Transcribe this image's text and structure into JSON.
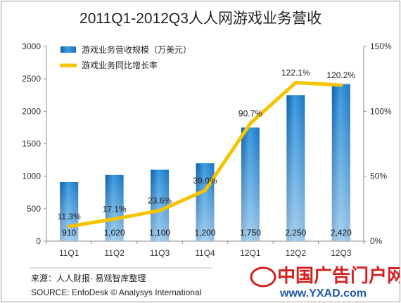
{
  "chart_data": {
    "type": "bar",
    "title": "2011Q1-2012Q3人人网游戏业务营收",
    "categories": [
      "11Q1",
      "11Q2",
      "11Q3",
      "11Q4",
      "12Q1",
      "12Q2",
      "12Q3"
    ],
    "series": [
      {
        "name": "游戏业务营收规模（万美元）",
        "type": "bar",
        "axis": "left",
        "values": [
          910,
          1020,
          1100,
          1200,
          1750,
          2250,
          2420
        ],
        "labels": [
          "910",
          "1,020",
          "1,100",
          "1,200",
          "1,750",
          "2,250",
          "2,420"
        ],
        "color": "#1f7ec8"
      },
      {
        "name": "游戏业务同比增长率",
        "type": "line",
        "axis": "right",
        "values": [
          11.3,
          17.1,
          23.6,
          39.0,
          90.7,
          122.1,
          120.2
        ],
        "labels": [
          "11.3%",
          "17.1%",
          "23.6%",
          "39.0%",
          "90.7%",
          "122.1%",
          "120.2%"
        ],
        "color": "#f5c400"
      }
    ],
    "y_left": {
      "min": 0,
      "max": 3000,
      "ticks": [
        "0",
        "500",
        "1000",
        "1500",
        "2000",
        "2500",
        "3000"
      ]
    },
    "y_right": {
      "min": 0,
      "max": 150,
      "ticks": [
        "0%",
        "50%",
        "100%",
        "150%"
      ]
    },
    "grid": false,
    "legend": "top-left"
  },
  "footer": {
    "source_cn": "来源：人人财报· 易观智库整理",
    "source_en": "SOURCE: EnfoDesk © Analysys International"
  },
  "watermark": {
    "name": "中国广告门户网",
    "url": "www.YXAD.com"
  }
}
